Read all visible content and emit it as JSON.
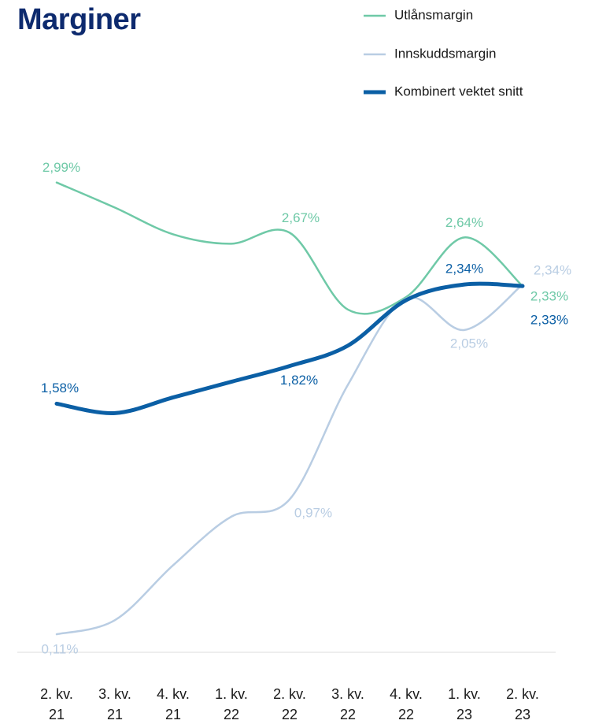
{
  "chart_data": {
    "type": "line",
    "title": "Marginer",
    "categories": [
      "2. kv. 21",
      "3. kv. 21",
      "4. kv. 21",
      "1. kv. 22",
      "2. kv. 22",
      "3. kv. 22",
      "4. kv. 22",
      "1. kv. 23",
      "2. kv. 23"
    ],
    "ylim": [
      0,
      3.35
    ],
    "legend": "top-right",
    "series": [
      {
        "name": "Utlånsmargin",
        "color": "#6fc9a7",
        "width": 2.5,
        "values": [
          2.99,
          2.83,
          2.66,
          2.6,
          2.67,
          2.18,
          2.26,
          2.64,
          2.33
        ],
        "value_labels": [
          "2,99%",
          null,
          null,
          null,
          "2,67%",
          null,
          null,
          "2,64%",
          "2,33%"
        ]
      },
      {
        "name": "Innskuddsmargin",
        "color": "#b9cde3",
        "width": 2.5,
        "values": [
          0.11,
          0.2,
          0.55,
          0.86,
          0.97,
          1.7,
          2.25,
          2.05,
          2.34
        ],
        "value_labels": [
          "0,11%",
          null,
          null,
          null,
          "0,97%",
          null,
          null,
          "2,05%",
          "2,34%"
        ]
      },
      {
        "name": "Kombinert vektet snitt",
        "color": "#0b5fa5",
        "width": 5,
        "values": [
          1.58,
          1.52,
          1.62,
          1.72,
          1.82,
          1.95,
          2.24,
          2.34,
          2.33
        ],
        "value_labels": [
          "1,58%",
          null,
          null,
          null,
          "1,82%",
          null,
          null,
          "2,34%",
          "2,33%"
        ]
      }
    ]
  }
}
